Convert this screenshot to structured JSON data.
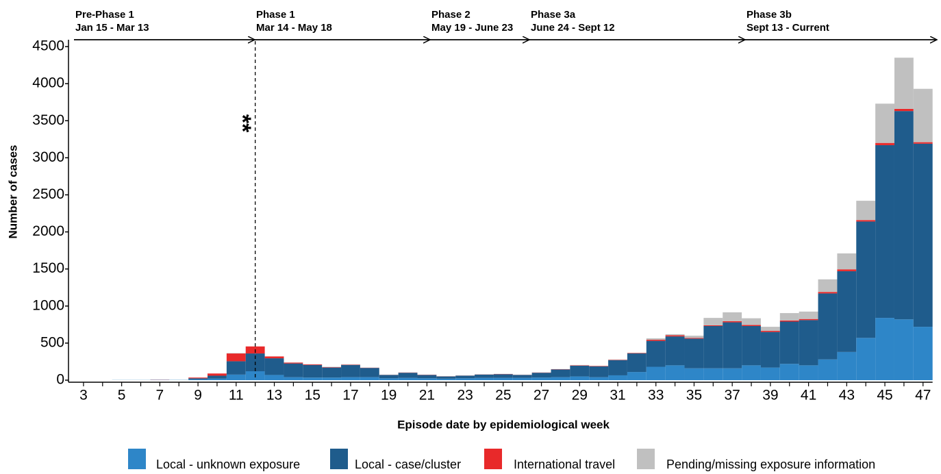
{
  "chart_data": {
    "type": "stacked_bar",
    "x_label": "Episode date by epidemiological week",
    "y_label": "Number of cases",
    "annotation": "**",
    "phases": [
      {
        "name": "Pre-Phase 1",
        "dates": "Jan 15 - Mar 13"
      },
      {
        "name": "Phase 1",
        "dates": "Mar 14 - May 18"
      },
      {
        "name": "Phase 2",
        "dates": "May 19 - June 23"
      },
      {
        "name": "Phase 3a",
        "dates": "June 24 - Sept 12"
      },
      {
        "name": "Phase 3b",
        "dates": "Sept 13 - Current"
      }
    ],
    "categories": [
      "3",
      null,
      "5",
      null,
      "7",
      null,
      "9",
      null,
      "11",
      null,
      "13",
      null,
      "15",
      null,
      "17",
      null,
      "19",
      null,
      "21",
      null,
      "23",
      null,
      "25",
      null,
      "27",
      null,
      "29",
      null,
      "31",
      null,
      "33",
      null,
      "35",
      null,
      "37",
      null,
      "39",
      null,
      "41",
      null,
      "43",
      null,
      "45",
      null,
      "47"
    ],
    "ylim": [
      0,
      4500
    ],
    "yticks": [
      0,
      500,
      1000,
      1500,
      2000,
      2500,
      3000,
      3500,
      4000,
      4500
    ],
    "series": [
      {
        "name": "Local - unknown exposure",
        "color": "#2e86c8",
        "values": [
          0,
          0,
          2,
          2,
          4,
          3,
          10,
          20,
          75,
          120,
          70,
          40,
          35,
          35,
          40,
          40,
          25,
          30,
          25,
          20,
          25,
          30,
          30,
          30,
          35,
          40,
          50,
          40,
          65,
          110,
          180,
          200,
          160,
          160,
          160,
          200,
          170,
          220,
          200,
          280,
          380,
          570,
          840,
          820,
          720
        ]
      },
      {
        "name": "Local - case/cluster",
        "color": "#1f5c8c",
        "values": [
          0,
          0,
          0,
          0,
          0,
          0,
          15,
          40,
          180,
          240,
          225,
          185,
          170,
          135,
          165,
          125,
          45,
          70,
          45,
          30,
          35,
          45,
          50,
          40,
          65,
          105,
          145,
          145,
          205,
          250,
          350,
          390,
          400,
          570,
          620,
          530,
          480,
          570,
          610,
          890,
          1090,
          1570,
          2330,
          2810,
          2470
        ]
      },
      {
        "name": "International travel",
        "color": "#e8292a",
        "values": [
          0,
          0,
          0,
          0,
          2,
          0,
          10,
          30,
          105,
          95,
          25,
          12,
          8,
          5,
          5,
          3,
          2,
          3,
          3,
          2,
          2,
          2,
          3,
          2,
          3,
          3,
          5,
          5,
          5,
          5,
          15,
          15,
          10,
          10,
          15,
          15,
          15,
          15,
          15,
          20,
          25,
          20,
          30,
          30,
          20
        ]
      },
      {
        "name": "Pending/missing exposure information",
        "color": "#c0c0c0",
        "values": [
          0,
          0,
          0,
          0,
          0,
          0,
          0,
          0,
          5,
          0,
          0,
          3,
          2,
          5,
          5,
          2,
          3,
          2,
          2,
          3,
          3,
          3,
          2,
          3,
          2,
          2,
          5,
          5,
          5,
          5,
          20,
          15,
          30,
          100,
          120,
          90,
          55,
          100,
          100,
          170,
          215,
          260,
          530,
          690,
          720
        ]
      }
    ]
  }
}
